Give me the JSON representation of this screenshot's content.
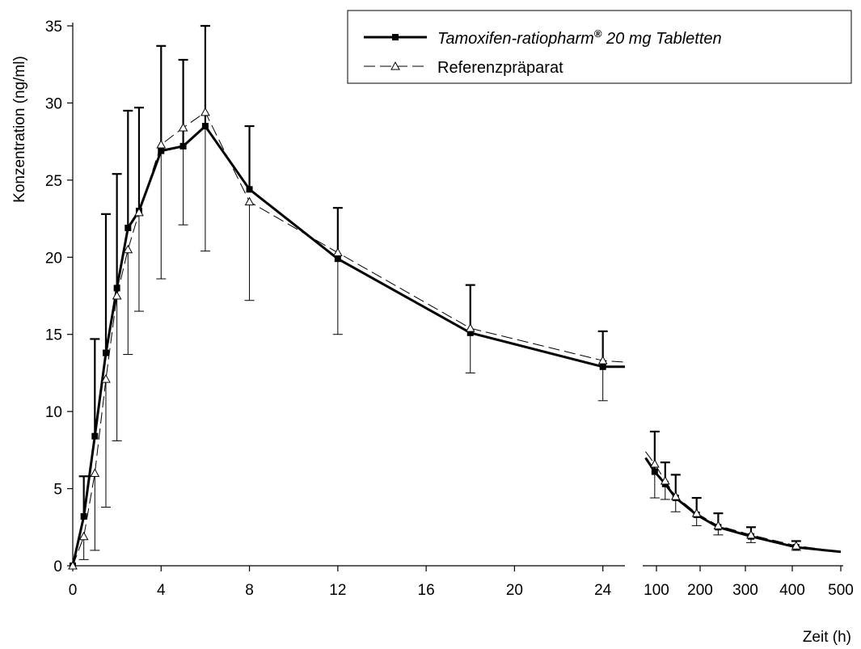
{
  "chart_data": {
    "type": "line",
    "ylabel": "Konzentration (ng/ml)",
    "xlabel": "Zeit (h)",
    "ylim": [
      0,
      35
    ],
    "y_ticks": [
      "0",
      "5",
      "10",
      "15",
      "20",
      "25",
      "30",
      "35"
    ],
    "panels": [
      {
        "xlim": [
          0,
          25
        ],
        "x_ticks": [
          "0",
          "4",
          "8",
          "12",
          "16",
          "20",
          "24"
        ]
      },
      {
        "xlim": [
          75,
          500
        ],
        "x_ticks": [
          "100",
          "200",
          "300",
          "400",
          "500"
        ]
      }
    ],
    "legend": {
      "placement": "top-right"
    },
    "series": [
      {
        "name": "Tamoxifen-ratiopharm",
        "name_sup": "®",
        "name_suffix": " 20 mg Tabletten",
        "style": "solid-bold",
        "marker": "filled-square",
        "color": "#000000",
        "points": [
          {
            "x": 0,
            "y": 0,
            "err": 0
          },
          {
            "x": 0.5,
            "y": 3.2,
            "err": 2.6
          },
          {
            "x": 1,
            "y": 8.4,
            "err": 6.3
          },
          {
            "x": 1.5,
            "y": 13.8,
            "err": 9.0
          },
          {
            "x": 2,
            "y": 18.0,
            "err": 7.4
          },
          {
            "x": 2.5,
            "y": 21.9,
            "err": 7.6
          },
          {
            "x": 3,
            "y": 23.0,
            "err": 6.7
          },
          {
            "x": 4,
            "y": 26.9,
            "err": 6.8
          },
          {
            "x": 5,
            "y": 27.2,
            "err": 5.6
          },
          {
            "x": 6,
            "y": 28.5,
            "err": 6.5
          },
          {
            "x": 8,
            "y": 24.4,
            "err": 4.1
          },
          {
            "x": 12,
            "y": 19.9,
            "err": 3.3
          },
          {
            "x": 18,
            "y": 15.1,
            "err": 3.1
          },
          {
            "x": 24,
            "y": 12.9,
            "err": 2.3
          },
          {
            "x": 25,
            "y": 12.9,
            "err": null
          },
          {
            "x": 75,
            "y": 7.0,
            "err": null,
            "panel": 1
          },
          {
            "x": 96,
            "y": 6.1,
            "err": 2.6,
            "panel": 1
          },
          {
            "x": 120,
            "y": 5.3,
            "err": 1.4,
            "panel": 1
          },
          {
            "x": 144,
            "y": 4.4,
            "err": 1.5,
            "panel": 1
          },
          {
            "x": 192,
            "y": 3.3,
            "err": 1.1,
            "panel": 1
          },
          {
            "x": 240,
            "y": 2.5,
            "err": 0.9,
            "panel": 1
          },
          {
            "x": 312,
            "y": 1.9,
            "err": 0.6,
            "panel": 1
          },
          {
            "x": 408,
            "y": 1.2,
            "err": 0.4,
            "panel": 1
          },
          {
            "x": 500,
            "y": 0.9,
            "err": null,
            "panel": 1
          }
        ]
      },
      {
        "name": "Referenzpräparat",
        "style": "dashed",
        "marker": "open-triangle",
        "color": "#000000",
        "points": [
          {
            "x": 0,
            "y": 0,
            "err": 0
          },
          {
            "x": 0.5,
            "y": 1.9,
            "err": 1.5
          },
          {
            "x": 1,
            "y": 6.0,
            "err": 5.0
          },
          {
            "x": 1.5,
            "y": 12.1,
            "err": 8.3
          },
          {
            "x": 2,
            "y": 17.5,
            "err": 9.4
          },
          {
            "x": 2.5,
            "y": 20.5,
            "err": 6.8
          },
          {
            "x": 3,
            "y": 22.9,
            "err": 6.4
          },
          {
            "x": 4,
            "y": 27.3,
            "err": 8.7
          },
          {
            "x": 5,
            "y": 28.4,
            "err": 6.3
          },
          {
            "x": 6,
            "y": 29.4,
            "err": 9.0
          },
          {
            "x": 8,
            "y": 23.6,
            "err": 6.4
          },
          {
            "x": 12,
            "y": 20.3,
            "err": 5.3
          },
          {
            "x": 18,
            "y": 15.4,
            "err": 2.9
          },
          {
            "x": 24,
            "y": 13.3,
            "err": 2.6
          },
          {
            "x": 25,
            "y": 13.2,
            "err": null
          },
          {
            "x": 75,
            "y": 7.4,
            "err": null,
            "panel": 1
          },
          {
            "x": 96,
            "y": 6.6,
            "err": 2.2,
            "panel": 1
          },
          {
            "x": 120,
            "y": 5.5,
            "err": 1.2,
            "panel": 1
          },
          {
            "x": 144,
            "y": 4.5,
            "err": 1.0,
            "panel": 1
          },
          {
            "x": 192,
            "y": 3.4,
            "err": 0.8,
            "panel": 1
          },
          {
            "x": 240,
            "y": 2.6,
            "err": 0.6,
            "panel": 1
          },
          {
            "x": 312,
            "y": 2.0,
            "err": 0.5,
            "panel": 1
          },
          {
            "x": 408,
            "y": 1.3,
            "err": 0.3,
            "panel": 1
          },
          {
            "x": 500,
            "y": 0.9,
            "err": null,
            "panel": 1
          }
        ]
      }
    ]
  }
}
